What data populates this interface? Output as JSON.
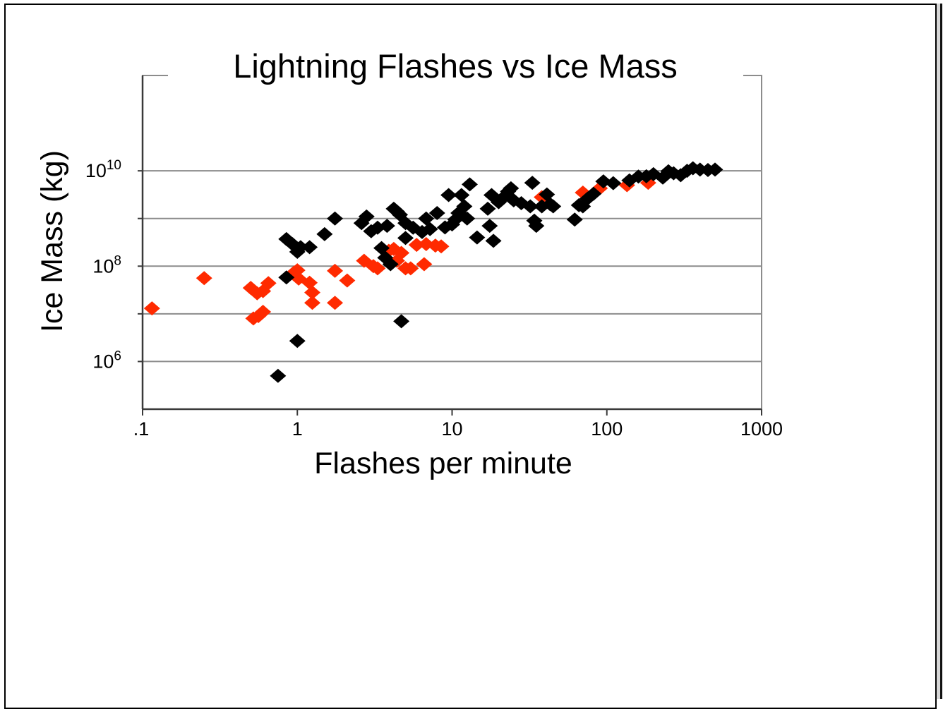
{
  "chart_data": {
    "type": "scatter",
    "title": "Lightning Flashes vs Ice Mass",
    "xlabel": "Flashes per minute",
    "ylabel": "Ice Mass (kg)",
    "x_scale": "log",
    "y_scale": "log",
    "xlim": [
      0.1,
      1000
    ],
    "ylim": [
      100000,
      1000000000000
    ],
    "x_ticks": [
      {
        "value": 0.1,
        "label": ".1"
      },
      {
        "value": 1,
        "label": "1"
      },
      {
        "value": 10,
        "label": "10"
      },
      {
        "value": 100,
        "label": "100"
      },
      {
        "value": 1000,
        "label": "1000"
      }
    ],
    "y_ticks": [
      {
        "value": 1000000,
        "base": "10",
        "exp": "6"
      },
      {
        "value": 100000000,
        "base": "10",
        "exp": "8"
      },
      {
        "value": 10000000000,
        "base": "10",
        "exp": "10"
      }
    ],
    "grid": true,
    "gridline_values": [
      1000000,
      10000000,
      100000000,
      1000000000,
      10000000000
    ],
    "marker": "diamond",
    "series": [
      {
        "color": "#ff2a00",
        "points": [
          [
            0.115,
            13000000
          ],
          [
            0.25,
            56000000
          ],
          [
            0.5,
            35000000
          ],
          [
            0.55,
            27000000
          ],
          [
            0.6,
            30000000
          ],
          [
            0.65,
            44000000
          ],
          [
            0.52,
            8000000
          ],
          [
            0.56,
            9000000
          ],
          [
            0.6,
            11000000
          ],
          [
            0.95,
            73000000
          ],
          [
            1.0,
            82000000
          ],
          [
            1.02,
            55000000
          ],
          [
            1.2,
            45000000
          ],
          [
            1.25,
            28000000
          ],
          [
            1.25,
            17000000
          ],
          [
            1.75,
            80000000
          ],
          [
            1.75,
            17000000
          ],
          [
            2.1,
            50000000
          ],
          [
            2.7,
            130000000
          ],
          [
            3.1,
            100000000
          ],
          [
            3.3,
            90000000
          ],
          [
            3.9,
            210000000
          ],
          [
            4.2,
            230000000
          ],
          [
            4.4,
            130000000
          ],
          [
            4.7,
            190000000
          ],
          [
            5.0,
            90000000
          ],
          [
            5.4,
            90000000
          ],
          [
            5.9,
            280000000
          ],
          [
            6.6,
            110000000
          ],
          [
            6.8,
            290000000
          ],
          [
            7.8,
            270000000
          ],
          [
            8.5,
            260000000
          ],
          [
            38,
            2800000000
          ],
          [
            70,
            3500000000
          ],
          [
            90,
            4300000000
          ],
          [
            135,
            5000000000
          ],
          [
            185,
            5600000000
          ]
        ]
      },
      {
        "color": "#000000",
        "points": [
          [
            0.75,
            500000
          ],
          [
            1.0,
            2700000
          ],
          [
            4.7,
            7000000
          ],
          [
            0.85,
            58000000
          ],
          [
            0.85,
            370000000
          ],
          [
            0.93,
            290000000
          ],
          [
            1.0,
            200000000
          ],
          [
            1.05,
            250000000
          ],
          [
            1.2,
            250000000
          ],
          [
            1.5,
            470000000
          ],
          [
            1.75,
            1000000000
          ],
          [
            2.6,
            800000000
          ],
          [
            2.8,
            1100000000
          ],
          [
            3.0,
            540000000
          ],
          [
            3.3,
            640000000
          ],
          [
            3.5,
            240000000
          ],
          [
            3.8,
            700000000
          ],
          [
            3.7,
            150000000
          ],
          [
            4.0,
            110000000
          ],
          [
            4.2,
            1600000000
          ],
          [
            4.4,
            1400000000
          ],
          [
            4.6,
            1200000000
          ],
          [
            5.0,
            800000000
          ],
          [
            5.0,
            390000000
          ],
          [
            5.6,
            640000000
          ],
          [
            6.4,
            520000000
          ],
          [
            6.8,
            1000000000
          ],
          [
            7.2,
            600000000
          ],
          [
            8.0,
            1300000000
          ],
          [
            9.0,
            650000000
          ],
          [
            9.5,
            3100000000
          ],
          [
            10,
            750000000
          ],
          [
            10.5,
            950000000
          ],
          [
            11,
            1300000000
          ],
          [
            11.5,
            3100000000
          ],
          [
            12,
            1800000000
          ],
          [
            12.5,
            1000000000
          ],
          [
            13,
            5200000000
          ],
          [
            14.5,
            400000000
          ],
          [
            17,
            1600000000
          ],
          [
            17.5,
            700000000
          ],
          [
            18,
            3100000000
          ],
          [
            18.5,
            340000000
          ],
          [
            20,
            2200000000
          ],
          [
            21,
            2600000000
          ],
          [
            23,
            3700000000
          ],
          [
            24,
            4300000000
          ],
          [
            25,
            2400000000
          ],
          [
            28,
            2100000000
          ],
          [
            33,
            5600000000
          ],
          [
            32,
            1800000000
          ],
          [
            34,
            900000000
          ],
          [
            35,
            700000000
          ],
          [
            38,
            1800000000
          ],
          [
            41,
            3200000000
          ],
          [
            43,
            2000000000
          ],
          [
            45,
            1800000000
          ],
          [
            62,
            950000000
          ],
          [
            66,
            1900000000
          ],
          [
            70,
            1800000000
          ],
          [
            75,
            2600000000
          ],
          [
            82,
            3300000000
          ],
          [
            95,
            6000000000
          ],
          [
            110,
            5500000000
          ],
          [
            140,
            6300000000
          ],
          [
            160,
            7600000000
          ],
          [
            180,
            7700000000
          ],
          [
            200,
            8500000000
          ],
          [
            230,
            7200000000
          ],
          [
            250,
            9800000000
          ],
          [
            270,
            8900000000
          ],
          [
            300,
            8100000000
          ],
          [
            330,
            10000000000
          ],
          [
            360,
            11300000000
          ],
          [
            400,
            10600000000
          ],
          [
            450,
            10400000000
          ],
          [
            500,
            10600000000
          ]
        ]
      }
    ]
  }
}
